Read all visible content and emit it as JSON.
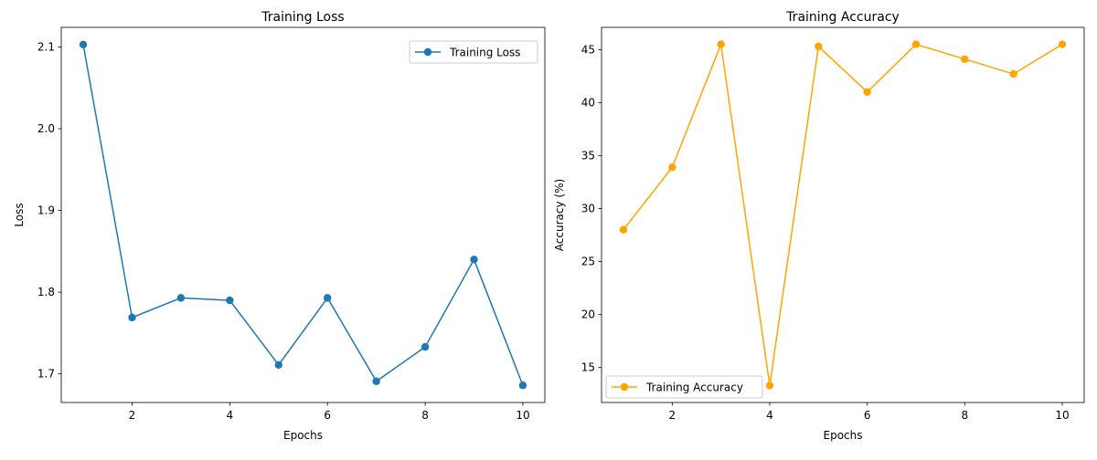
{
  "chart_data": [
    {
      "type": "line",
      "title": "Training Loss",
      "xlabel": "Epochs",
      "ylabel": "Loss",
      "xlim": [
        0.55,
        10.45
      ],
      "ylim": [
        1.665,
        2.124
      ],
      "xticks": [
        2,
        4,
        6,
        8,
        10
      ],
      "yticks": [
        1.7,
        1.8,
        1.9,
        2.0,
        2.1
      ],
      "ytick_format": "1",
      "legend_position": "upper right",
      "grid": false,
      "x": [
        1,
        2,
        3,
        4,
        5,
        6,
        7,
        8,
        9,
        10
      ],
      "series": [
        {
          "name": "Training Loss",
          "color": "#1f77b4",
          "marker": "circle",
          "values": [
            2.103,
            1.769,
            1.793,
            1.79,
            1.711,
            1.793,
            1.691,
            1.733,
            1.84,
            1.686
          ]
        }
      ]
    },
    {
      "type": "line",
      "title": "Training Accuracy",
      "xlabel": "Epochs",
      "ylabel": "Accuracy (%)",
      "xlim": [
        0.55,
        10.45
      ],
      "ylim": [
        11.7,
        47.1
      ],
      "xticks": [
        2,
        4,
        6,
        8,
        10
      ],
      "yticks": [
        15,
        20,
        25,
        30,
        35,
        40,
        45
      ],
      "ytick_format": "0",
      "legend_position": "lower left",
      "grid": false,
      "x": [
        1,
        2,
        3,
        4,
        5,
        6,
        7,
        8,
        9,
        10
      ],
      "series": [
        {
          "name": "Training Accuracy",
          "color": "#ffa500",
          "marker": "circle",
          "values": [
            28.0,
            33.9,
            45.5,
            13.3,
            45.3,
            41.0,
            45.5,
            44.1,
            42.7,
            45.5
          ]
        }
      ]
    }
  ]
}
